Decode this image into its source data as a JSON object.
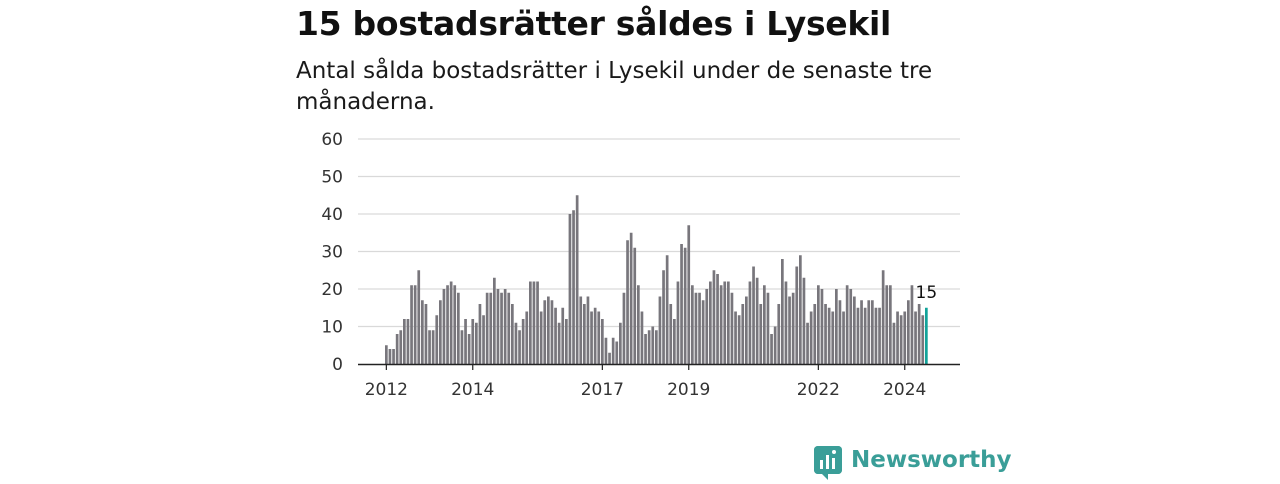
{
  "title": "15 bostadsrätter såldes i Lysekil",
  "subtitle": "Antal sålda bostadsrätter i Lysekil under de senaste tre månaderna.",
  "brand": "Newsworthy",
  "colors": {
    "bar": "#78767c",
    "highlight": "#12a39a",
    "grid": "#d9d9d9",
    "brand": "#3a9e98"
  },
  "chart_data": {
    "type": "bar",
    "title": "15 bostadsrätter såldes i Lysekil",
    "xlabel": "",
    "ylabel": "",
    "ylim": [
      0,
      60
    ],
    "yticks": [
      0,
      10,
      20,
      30,
      40,
      50,
      60
    ],
    "xtick_labels": [
      {
        "label": "2012",
        "index": 0
      },
      {
        "label": "2014",
        "index": 24
      },
      {
        "label": "2017",
        "index": 60
      },
      {
        "label": "2019",
        "index": 84
      },
      {
        "label": "2022",
        "index": 120
      },
      {
        "label": "2024",
        "index": 144
      }
    ],
    "highlight_label": "15",
    "values": [
      5,
      4,
      4,
      8,
      9,
      12,
      12,
      21,
      21,
      25,
      17,
      16,
      9,
      9,
      13,
      17,
      20,
      21,
      22,
      21,
      19,
      9,
      12,
      8,
      12,
      11,
      16,
      13,
      19,
      19,
      23,
      20,
      19,
      20,
      19,
      16,
      11,
      9,
      12,
      14,
      22,
      22,
      22,
      14,
      17,
      18,
      17,
      15,
      11,
      15,
      12,
      40,
      41,
      45,
      18,
      16,
      18,
      14,
      15,
      14,
      12,
      7,
      3,
      7,
      6,
      11,
      19,
      33,
      35,
      31,
      21,
      14,
      8,
      9,
      10,
      9,
      18,
      25,
      29,
      16,
      12,
      22,
      32,
      31,
      37,
      21,
      19,
      19,
      17,
      20,
      22,
      25,
      24,
      21,
      22,
      22,
      19,
      14,
      13,
      16,
      18,
      22,
      26,
      23,
      16,
      21,
      19,
      8,
      10,
      16,
      28,
      22,
      18,
      19,
      26,
      29,
      23,
      11,
      14,
      16,
      21,
      20,
      16,
      15,
      14,
      20,
      17,
      14,
      21,
      20,
      18,
      15,
      17,
      15,
      17,
      17,
      15,
      15,
      25,
      21,
      21,
      11,
      14,
      13,
      14,
      17,
      21,
      14,
      16,
      13,
      15
    ]
  }
}
